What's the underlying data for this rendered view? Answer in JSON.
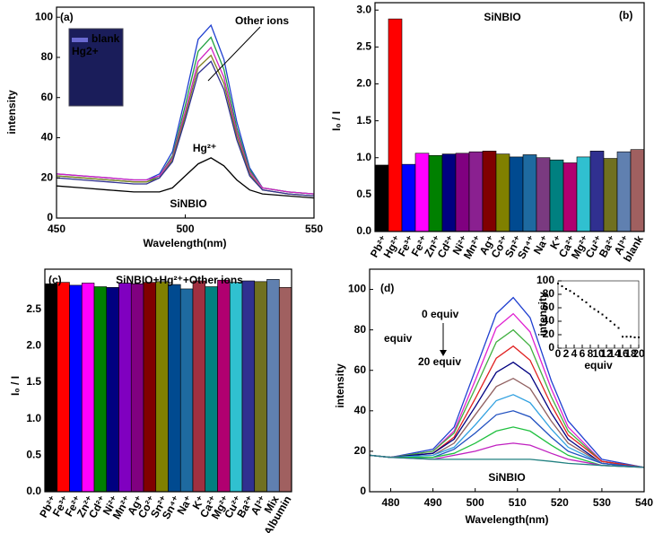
{
  "chart_data": [
    {
      "type": "line",
      "label": "(a)",
      "xlabel": "Wavelength(nm)",
      "ylabel": "intensity",
      "annotations": [
        "Other ions",
        "Hg²⁺",
        "SiNBIO",
        "blank",
        "Hg2+"
      ],
      "x": [
        450,
        460,
        470,
        480,
        485,
        490,
        495,
        500,
        505,
        510,
        515,
        520,
        525,
        530,
        540,
        550
      ],
      "series": [
        {
          "color": "#1f3fd0",
          "values": [
            22,
            21,
            20,
            19,
            19,
            22,
            33,
            60,
            89,
            96,
            79,
            48,
            25,
            15,
            13,
            12
          ]
        },
        {
          "color": "#20a040",
          "values": [
            21,
            20,
            19,
            18,
            18,
            21,
            31,
            56,
            83,
            90,
            74,
            45,
            24,
            15,
            13,
            12
          ]
        },
        {
          "color": "#d020c0",
          "values": [
            22,
            21,
            20,
            19,
            19,
            21,
            30,
            53,
            78,
            85,
            70,
            43,
            23,
            15,
            13,
            12
          ]
        },
        {
          "color": "#808020",
          "values": [
            21,
            20,
            19,
            18,
            18,
            20,
            29,
            51,
            75,
            81,
            67,
            41,
            22,
            14,
            12,
            11
          ]
        },
        {
          "color": "#303090",
          "values": [
            20,
            19,
            18,
            17,
            17,
            20,
            28,
            49,
            72,
            78,
            64,
            39,
            21,
            14,
            12,
            11
          ]
        },
        {
          "color": "#000000",
          "values": [
            16,
            15,
            14,
            13,
            13,
            13,
            15,
            21,
            27,
            30,
            26,
            19,
            14,
            12,
            11,
            10
          ]
        }
      ],
      "xlim": [
        450,
        550
      ],
      "ylim": [
        0,
        105
      ],
      "xticks": [
        450,
        500,
        550
      ],
      "yticks": [
        0,
        20,
        40,
        60,
        80,
        100
      ]
    },
    {
      "type": "bar",
      "label": "(b)",
      "ylabel": "I₀ / I",
      "annotations": [
        "SiNBIO"
      ],
      "categories": [
        "Pb²⁺",
        "Hg²⁺",
        "Fe³⁺",
        "Fe²⁺",
        "Zn²⁺",
        "Cd²⁺",
        "Ni²⁺",
        "Mn²⁺",
        "Ag⁺",
        "Co²⁺",
        "Sn²⁺",
        "Sn⁴⁺",
        "Na⁺",
        "K⁺",
        "Ca²⁺",
        "Mg²⁺",
        "Cu²⁺",
        "Ba²⁺",
        "Al³⁺",
        "blank"
      ],
      "values": [
        0.9,
        2.88,
        0.91,
        1.06,
        1.03,
        1.05,
        1.06,
        1.08,
        1.09,
        1.05,
        1.01,
        1.04,
        1.0,
        0.97,
        0.93,
        1.01,
        1.09,
        0.99,
        1.08,
        1.11
      ],
      "colors": [
        "#000000",
        "#ff0000",
        "#0000ff",
        "#ff00ff",
        "#008000",
        "#000080",
        "#800080",
        "#8a2090",
        "#800000",
        "#808000",
        "#004a90",
        "#1e6aa0",
        "#7a3a80",
        "#008080",
        "#b00070",
        "#30c0d0",
        "#303090",
        "#707020",
        "#6080b0",
        "#a06060"
      ],
      "ylim": [
        0,
        3.1
      ],
      "yticks": [
        {
          "value": 0,
          "label": "0.0"
        },
        {
          "value": 0.5,
          "label": "0.5"
        },
        {
          "value": 1,
          "label": "1.0"
        },
        {
          "value": 1.5,
          "label": "1.5"
        },
        {
          "value": 2,
          "label": "2.0"
        },
        {
          "value": 2.5,
          "label": "2.5"
        },
        {
          "value": 3,
          "label": "3.0"
        }
      ]
    },
    {
      "type": "bar",
      "label": "(c)",
      "title": "SiNBIO+Hg²⁺+Other ions",
      "ylabel": "I₀ / I",
      "categories": [
        "Pb²⁺",
        "Fe³⁺",
        "Fe²⁺",
        "Zn²⁺",
        "Cd²⁺",
        "Ni²⁺",
        "Mn²⁺",
        "Ag⁺",
        "Co²⁺",
        "Sn²⁺",
        "Sn⁴⁺",
        "Na⁺",
        "K⁺",
        "Ca²⁺",
        "Mg²⁺",
        "Cu²⁺",
        "Ba²⁺",
        "Al³⁺",
        "Mix",
        "Albumin"
      ],
      "values": [
        2.85,
        2.87,
        2.83,
        2.86,
        2.81,
        2.8,
        2.86,
        2.85,
        2.87,
        2.88,
        2.84,
        2.78,
        2.89,
        2.81,
        2.9,
        2.87,
        2.89,
        2.88,
        2.91,
        2.8
      ],
      "colors": [
        "#000000",
        "#ff0000",
        "#0000ff",
        "#ff00ff",
        "#008000",
        "#000080",
        "#8000c0",
        "#800080",
        "#800000",
        "#808000",
        "#004a90",
        "#1e6aa0",
        "#a03040",
        "#008080",
        "#b00070",
        "#30c0d0",
        "#303090",
        "#707020",
        "#6080b0",
        "#a06060"
      ],
      "ylim": [
        0,
        3.05
      ],
      "yticks": [
        {
          "value": 0,
          "label": "0.0"
        },
        {
          "value": 0.5,
          "label": "0.5"
        },
        {
          "value": 1,
          "label": "1.0"
        },
        {
          "value": 1.5,
          "label": "1.5"
        },
        {
          "value": 2,
          "label": "2.0"
        },
        {
          "value": 2.5,
          "label": "2.5"
        }
      ]
    },
    {
      "type": "line",
      "label": "(d)",
      "xlabel": "Wavelength(nm)",
      "ylabel": "intensity",
      "annotations": [
        "0 equiv",
        "equiv",
        "20 equiv",
        "SiNBIO"
      ],
      "x": [
        475,
        480,
        490,
        495,
        500,
        505,
        509,
        513,
        518,
        522,
        530,
        540
      ],
      "series": [
        {
          "color": "#1f3fd0",
          "values": [
            18,
            17,
            21,
            32,
            60,
            88,
            96,
            86,
            55,
            35,
            16,
            12
          ]
        },
        {
          "color": "#e020d0",
          "values": [
            18,
            17,
            20,
            30,
            55,
            81,
            88,
            79,
            51,
            32,
            15,
            12
          ]
        },
        {
          "color": "#40b040",
          "values": [
            18,
            17,
            20,
            29,
            51,
            74,
            80,
            72,
            47,
            30,
            15,
            12
          ]
        },
        {
          "color": "#e02020",
          "values": [
            18,
            17,
            19,
            27,
            46,
            66,
            72,
            65,
            43,
            28,
            15,
            12
          ]
        },
        {
          "color": "#000080",
          "values": [
            18,
            17,
            19,
            26,
            42,
            59,
            64,
            58,
            39,
            26,
            14,
            12
          ]
        },
        {
          "color": "#906060",
          "values": [
            18,
            17,
            18,
            24,
            38,
            52,
            56,
            51,
            35,
            24,
            14,
            12
          ]
        },
        {
          "color": "#30a0e0",
          "values": [
            18,
            17,
            18,
            22,
            33,
            45,
            48,
            44,
            31,
            22,
            14,
            12
          ]
        },
        {
          "color": "#2050c0",
          "values": [
            18,
            17,
            17,
            21,
            29,
            38,
            40,
            37,
            27,
            20,
            14,
            12
          ]
        },
        {
          "color": "#20c040",
          "values": [
            18,
            17,
            17,
            19,
            24,
            30,
            32,
            30,
            23,
            18,
            13,
            12
          ]
        },
        {
          "color": "#c020c0",
          "values": [
            18,
            17,
            16,
            18,
            20,
            23,
            24,
            23,
            19,
            16,
            13,
            12
          ]
        },
        {
          "color": "#208080",
          "values": [
            18,
            17,
            16,
            16,
            16,
            16,
            16,
            16,
            15,
            14,
            13,
            12
          ]
        }
      ],
      "xlim": [
        475,
        540
      ],
      "ylim": [
        0,
        110
      ],
      "xticks": [
        480,
        490,
        500,
        510,
        520,
        530,
        540
      ],
      "yticks": [
        0,
        20,
        40,
        60,
        80,
        100
      ]
    },
    {
      "type": "scatter",
      "xlabel": "equiv",
      "ylabel": "intensity",
      "color": "#000000",
      "x": [
        0,
        1,
        2,
        3,
        4,
        5,
        6,
        7,
        8,
        9,
        10,
        11,
        12,
        13,
        14,
        15,
        16,
        17,
        18,
        19,
        20
      ],
      "values": [
        96,
        92,
        88,
        85,
        81,
        77,
        72,
        68,
        62,
        58,
        54,
        50,
        45,
        40,
        35,
        30,
        17,
        17,
        17,
        16,
        16
      ],
      "xlim": [
        0,
        20
      ],
      "ylim": [
        0,
        100
      ],
      "xticks": [
        0,
        2,
        4,
        6,
        8,
        10,
        12,
        14,
        16,
        18,
        20
      ],
      "yticks": [
        0,
        20,
        40,
        60,
        80,
        100
      ]
    }
  ]
}
